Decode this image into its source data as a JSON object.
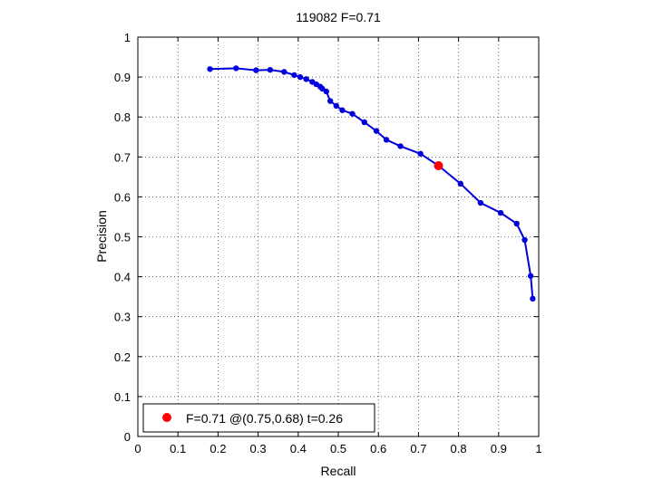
{
  "chart_data": {
    "type": "line",
    "title": "119082 F=0.71",
    "xlabel": "Recall",
    "ylabel": "Precision",
    "xlim": [
      0,
      1
    ],
    "ylim": [
      0,
      1
    ],
    "x_ticks": [
      "0",
      "0.1",
      "0.2",
      "0.3",
      "0.4",
      "0.5",
      "0.6",
      "0.7",
      "0.8",
      "0.9",
      "1"
    ],
    "y_ticks": [
      "0",
      "0.1",
      "0.2",
      "0.3",
      "0.4",
      "0.5",
      "0.6",
      "0.7",
      "0.8",
      "0.9",
      "1"
    ],
    "grid": true,
    "grid_style": "dotted",
    "legend_position": "bottom-left",
    "series": [
      {
        "color": "#0000dd",
        "marker": "circle",
        "x": [
          0.18,
          0.245,
          0.295,
          0.33,
          0.365,
          0.39,
          0.405,
          0.42,
          0.435,
          0.445,
          0.455,
          0.46,
          0.47,
          0.48,
          0.495,
          0.51,
          0.535,
          0.565,
          0.595,
          0.62,
          0.655,
          0.705,
          0.75,
          0.805,
          0.855,
          0.905,
          0.945,
          0.965,
          0.98,
          0.985
        ],
        "y": [
          0.92,
          0.922,
          0.917,
          0.918,
          0.913,
          0.905,
          0.9,
          0.895,
          0.888,
          0.882,
          0.876,
          0.871,
          0.864,
          0.84,
          0.828,
          0.817,
          0.808,
          0.787,
          0.765,
          0.743,
          0.727,
          0.708,
          0.678,
          0.633,
          0.585,
          0.56,
          0.533,
          0.492,
          0.402,
          0.345
        ]
      }
    ],
    "best_point": {
      "x": 0.75,
      "y": 0.678,
      "color": "#ff0000",
      "legend_label": "F=0.71 @(0.75,0.68) t=0.26"
    }
  }
}
